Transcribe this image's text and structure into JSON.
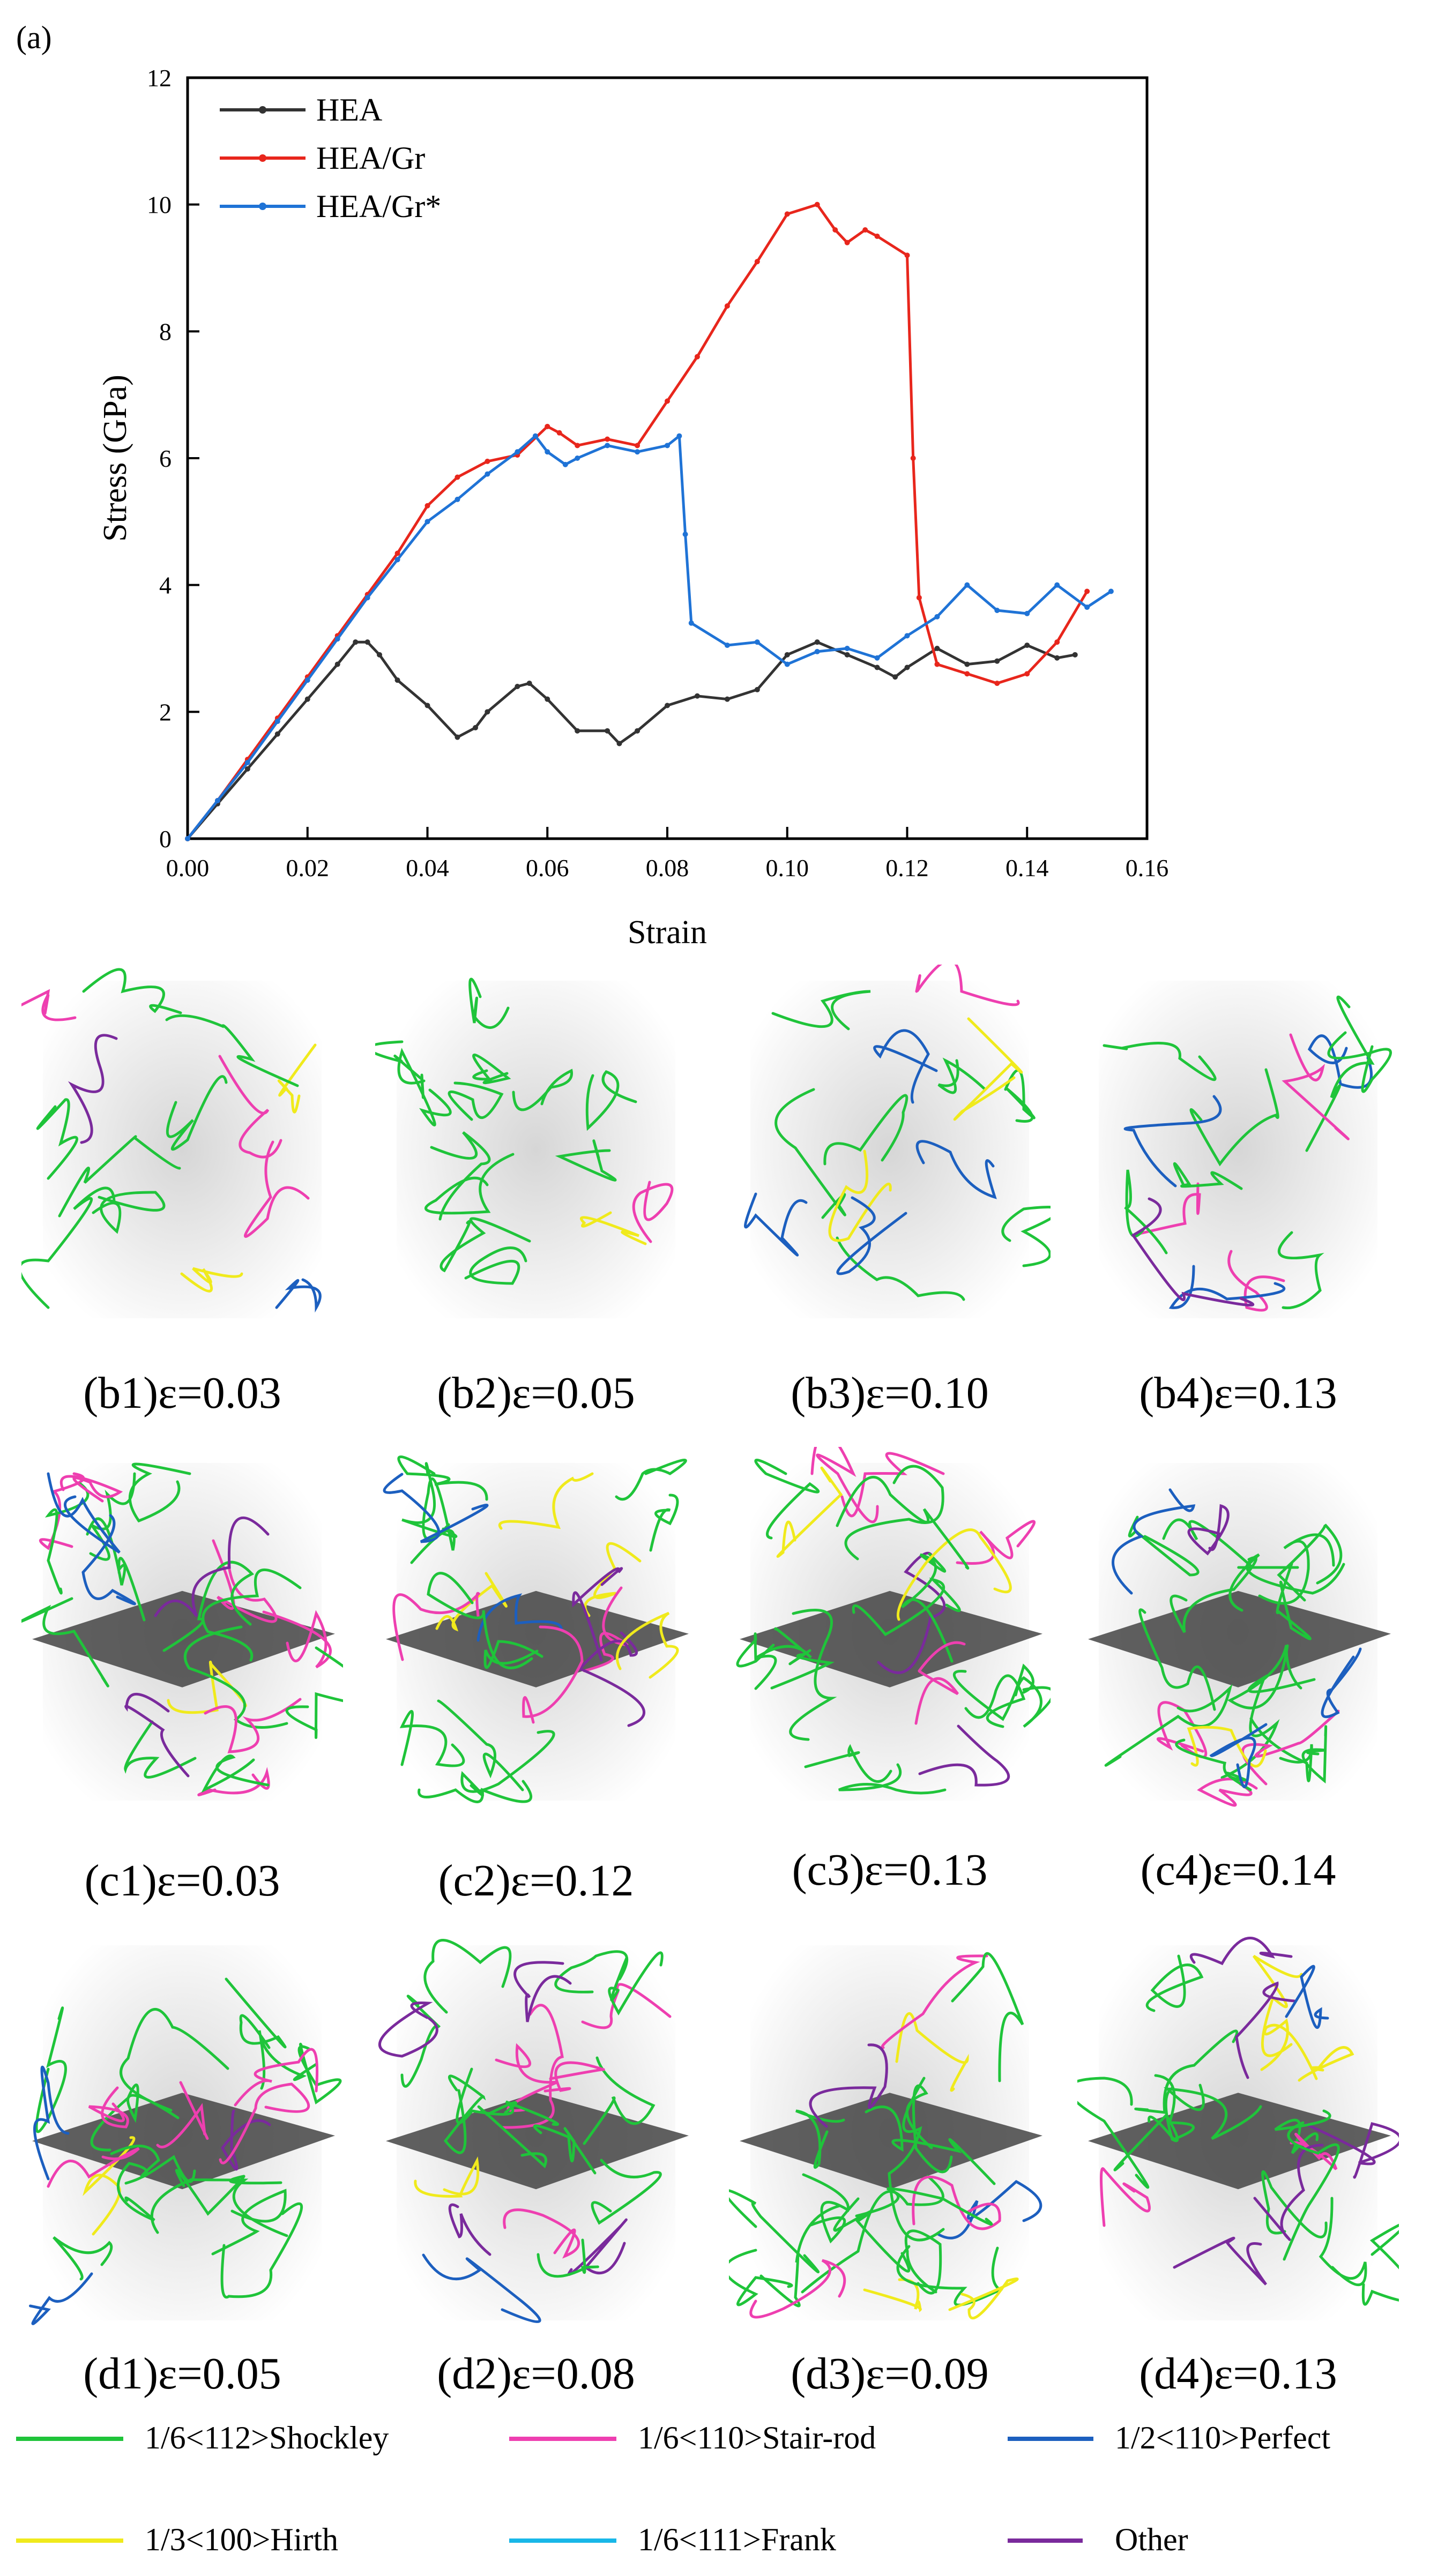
{
  "chart_data": {
    "type": "line",
    "panel_label": "(a)",
    "xlabel": "Strain",
    "ylabel": "Stress (GPa)",
    "xlim": [
      0,
      0.16
    ],
    "ylim": [
      0,
      12
    ],
    "xticks": [
      "0.00",
      "0.02",
      "0.04",
      "0.06",
      "0.08",
      "0.10",
      "0.12",
      "0.14",
      "0.16"
    ],
    "yticks": [
      "0",
      "2",
      "4",
      "6",
      "8",
      "10",
      "12"
    ],
    "legend_position": "top-left",
    "series": [
      {
        "name": "HEA",
        "color": "#333333",
        "x": [
          0,
          0.005,
          0.01,
          0.015,
          0.02,
          0.025,
          0.028,
          0.03,
          0.032,
          0.035,
          0.04,
          0.045,
          0.048,
          0.05,
          0.055,
          0.057,
          0.06,
          0.065,
          0.07,
          0.072,
          0.075,
          0.08,
          0.085,
          0.09,
          0.095,
          0.1,
          0.105,
          0.11,
          0.115,
          0.118,
          0.12,
          0.125,
          0.13,
          0.135,
          0.14,
          0.145,
          0.148
        ],
        "y": [
          0,
          0.55,
          1.1,
          1.65,
          2.2,
          2.75,
          3.1,
          3.1,
          2.9,
          2.5,
          2.1,
          1.6,
          1.75,
          2.0,
          2.4,
          2.45,
          2.2,
          1.7,
          1.7,
          1.5,
          1.7,
          2.1,
          2.25,
          2.2,
          2.35,
          2.9,
          3.1,
          2.9,
          2.7,
          2.55,
          2.7,
          3.0,
          2.75,
          2.8,
          3.05,
          2.85,
          2.9
        ]
      },
      {
        "name": "HEA/Gr",
        "color": "#e8261c",
        "x": [
          0,
          0.005,
          0.01,
          0.015,
          0.02,
          0.025,
          0.03,
          0.035,
          0.04,
          0.045,
          0.05,
          0.055,
          0.06,
          0.062,
          0.065,
          0.07,
          0.075,
          0.08,
          0.085,
          0.09,
          0.095,
          0.1,
          0.105,
          0.108,
          0.11,
          0.113,
          0.115,
          0.12,
          0.121,
          0.122,
          0.125,
          0.13,
          0.135,
          0.14,
          0.145,
          0.15
        ],
        "y": [
          0,
          0.6,
          1.25,
          1.9,
          2.55,
          3.2,
          3.85,
          4.5,
          5.25,
          5.7,
          5.95,
          6.05,
          6.5,
          6.4,
          6.2,
          6.3,
          6.2,
          6.9,
          7.6,
          8.4,
          9.1,
          9.85,
          10.0,
          9.6,
          9.4,
          9.6,
          9.5,
          9.2,
          6.0,
          3.8,
          2.75,
          2.6,
          2.45,
          2.6,
          3.1,
          3.9
        ]
      },
      {
        "name": "HEA/Gr*",
        "color": "#1f73d6",
        "x": [
          0,
          0.005,
          0.01,
          0.015,
          0.02,
          0.025,
          0.03,
          0.035,
          0.04,
          0.045,
          0.05,
          0.055,
          0.058,
          0.06,
          0.063,
          0.065,
          0.07,
          0.075,
          0.08,
          0.082,
          0.083,
          0.084,
          0.09,
          0.095,
          0.1,
          0.105,
          0.11,
          0.115,
          0.12,
          0.125,
          0.13,
          0.135,
          0.14,
          0.145,
          0.15,
          0.154
        ],
        "y": [
          0,
          0.6,
          1.2,
          1.85,
          2.5,
          3.15,
          3.8,
          4.4,
          5.0,
          5.35,
          5.75,
          6.1,
          6.35,
          6.1,
          5.9,
          6.0,
          6.2,
          6.1,
          6.2,
          6.35,
          4.8,
          3.4,
          3.05,
          3.1,
          2.75,
          2.95,
          3.0,
          2.85,
          3.2,
          3.5,
          4.0,
          3.6,
          3.55,
          4.0,
          3.65,
          3.9
        ]
      }
    ]
  },
  "panels": {
    "row_b": [
      {
        "label": "(b1)ε=0.03"
      },
      {
        "label": "(b2)ε=0.05"
      },
      {
        "label": "(b3)ε=0.10"
      },
      {
        "label": "(b4)ε=0.13"
      }
    ],
    "row_c": [
      {
        "label": "(c1)ε=0.03"
      },
      {
        "label": "(c2)ε=0.12"
      },
      {
        "label": "(c3)ε=0.13"
      },
      {
        "label": "(c4)ε=0.14"
      }
    ],
    "row_d": [
      {
        "label": "(d1)ε=0.05"
      },
      {
        "label": "(d2)ε=0.08"
      },
      {
        "label": "(d3)ε=0.09"
      },
      {
        "label": "(d4)ε=0.13"
      }
    ]
  },
  "dislocation_legend": [
    {
      "label": "1/6<112>Shockley",
      "color": "#1fc43a"
    },
    {
      "label": "1/6<110>Stair-rod",
      "color": "#ee3fb0"
    },
    {
      "label": "1/2<110>Perfect",
      "color": "#1c5fbf"
    },
    {
      "label": "1/3<100>Hirth",
      "color": "#f0ea1c"
    },
    {
      "label": "1/6<111>Frank",
      "color": "#18b7e8"
    },
    {
      "label": "Other",
      "color": "#7a2a9c"
    }
  ]
}
